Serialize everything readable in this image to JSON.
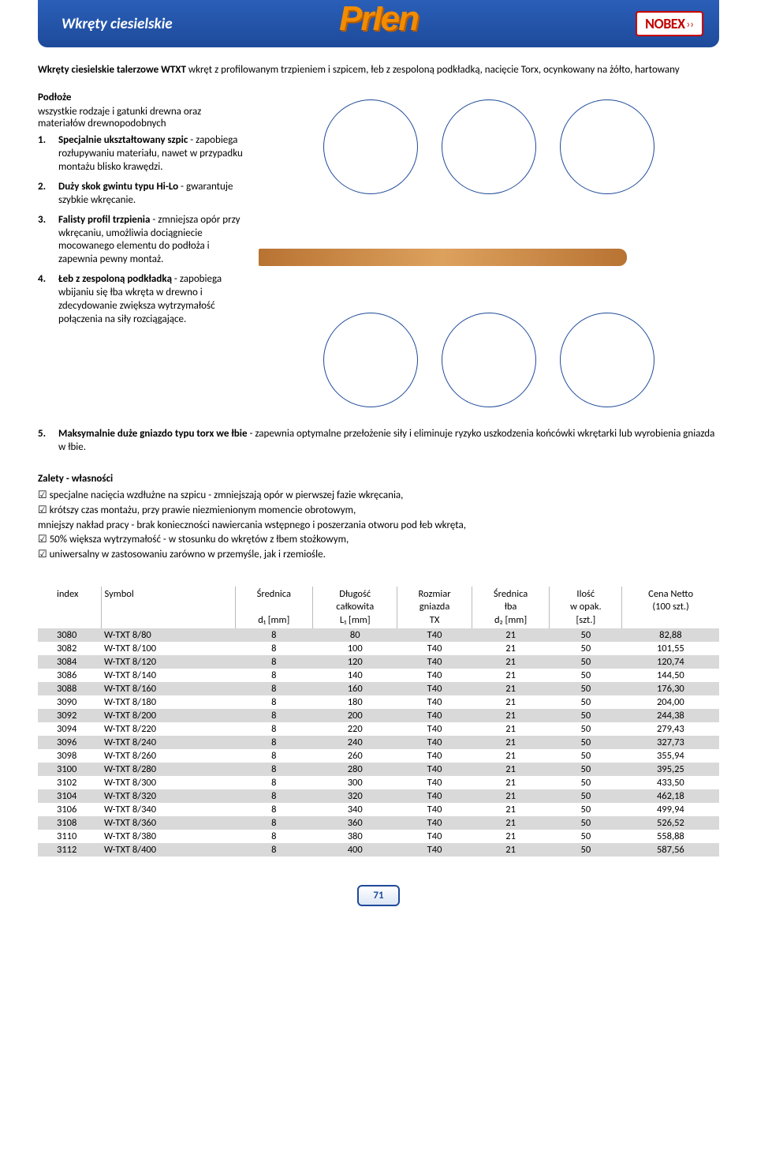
{
  "header": {
    "title": "Wkręty ciesielskie",
    "brand": "PrIen",
    "badge": "NOBEX",
    "badge_arrows": "››"
  },
  "intro": {
    "bold": "Wkręty ciesielskie talerzowe WTXT ",
    "rest": "wkręt z profilowanym trzpieniem i szpicem, łeb z zespoloną podkładką, nacięcie Torx, ocynkowany na żółto, hartowany"
  },
  "podloze": {
    "title": "Podłoże",
    "text": "wszystkie rodzaje i gatunki drewna oraz materiałów drewnopodobnych"
  },
  "features": [
    {
      "t": "Specjalnie ukształtowany szpic",
      "d": " - zapobiega rozłupywaniu materiału, nawet w przypadku montażu blisko krawędzi."
    },
    {
      "t": "Duży skok gwintu typu Hi-Lo",
      "d": " - gwarantuje szybkie wkręcanie."
    },
    {
      "t": "Falisty profil trzpienia",
      "d": " - zmniejsza opór przy wkręcaniu, umożliwia dociągniecie mocowanego elementu do podłoża i zapewnia pewny montaż."
    },
    {
      "t": "Łeb z zespoloną podkładką",
      "d": " - zapobiega wbijaniu się łba wkręta w drewno i zdecydowanie zwiększa wytrzymałość połączenia na siły rozciągające."
    },
    {
      "t": "Maksymalnie duże gniazdo typu torx we łbie",
      "d": " - zapewnia optymalne przełożenie siły i eliminuje ryzyko uszkodzenia końcówki wkrętarki lub wyrobienia gniazda w łbie."
    }
  ],
  "zalety": {
    "title": "Zalety - własności",
    "items": [
      "specjalne nacięcia wzdłużne na szpicu - zmniejszają opór w pierwszej fazie wkręcania,",
      "krótszy czas montażu, przy prawie niezmienionym momencie obrotowym,",
      "50% większa wytrzymałość - w stosunku do wkrętów z łbem stożkowym,",
      "uniwersalny w zastosowaniu zarówno w przemyśle, jak i rzemiośle."
    ],
    "plain": "mniejszy nakład pracy - brak konieczności nawiercania wstępnego i poszerzania otworu pod łeb wkręta,"
  },
  "table": {
    "headers": {
      "index": "index",
      "symbol": "Symbol",
      "d1_a": "Średnica",
      "d1_b": "d₁ [mm]",
      "l1_a": "Długość",
      "l1_b": "całkowita",
      "l1_c": "L₁ [mm]",
      "tx_a": "Rozmiar",
      "tx_b": "gniazda",
      "tx_c": "TX",
      "d2_a": "Średnica",
      "d2_b": "łba",
      "d2_c": "d₂ [mm]",
      "qty_a": "Ilość",
      "qty_b": "w opak.",
      "qty_c": "[szt.]",
      "price_a": "Cena Netto",
      "price_b": "(100 szt.)"
    },
    "rows": [
      {
        "idx": "3080",
        "sym": "W-TXT 8/80",
        "d1": "8",
        "l1": "80",
        "tx": "T40",
        "d2": "21",
        "qty": "50",
        "price": "82,88"
      },
      {
        "idx": "3082",
        "sym": "W-TXT 8/100",
        "d1": "8",
        "l1": "100",
        "tx": "T40",
        "d2": "21",
        "qty": "50",
        "price": "101,55"
      },
      {
        "idx": "3084",
        "sym": "W-TXT 8/120",
        "d1": "8",
        "l1": "120",
        "tx": "T40",
        "d2": "21",
        "qty": "50",
        "price": "120,74"
      },
      {
        "idx": "3086",
        "sym": "W-TXT 8/140",
        "d1": "8",
        "l1": "140",
        "tx": "T40",
        "d2": "21",
        "qty": "50",
        "price": "144,50"
      },
      {
        "idx": "3088",
        "sym": "W-TXT 8/160",
        "d1": "8",
        "l1": "160",
        "tx": "T40",
        "d2": "21",
        "qty": "50",
        "price": "176,30"
      },
      {
        "idx": "3090",
        "sym": "W-TXT 8/180",
        "d1": "8",
        "l1": "180",
        "tx": "T40",
        "d2": "21",
        "qty": "50",
        "price": "204,00"
      },
      {
        "idx": "3092",
        "sym": "W-TXT 8/200",
        "d1": "8",
        "l1": "200",
        "tx": "T40",
        "d2": "21",
        "qty": "50",
        "price": "244,38"
      },
      {
        "idx": "3094",
        "sym": "W-TXT 8/220",
        "d1": "8",
        "l1": "220",
        "tx": "T40",
        "d2": "21",
        "qty": "50",
        "price": "279,43"
      },
      {
        "idx": "3096",
        "sym": "W-TXT 8/240",
        "d1": "8",
        "l1": "240",
        "tx": "T40",
        "d2": "21",
        "qty": "50",
        "price": "327,73"
      },
      {
        "idx": "3098",
        "sym": "W-TXT 8/260",
        "d1": "8",
        "l1": "260",
        "tx": "T40",
        "d2": "21",
        "qty": "50",
        "price": "355,94"
      },
      {
        "idx": "3100",
        "sym": "W-TXT 8/280",
        "d1": "8",
        "l1": "280",
        "tx": "T40",
        "d2": "21",
        "qty": "50",
        "price": "395,25"
      },
      {
        "idx": "3102",
        "sym": "W-TXT 8/300",
        "d1": "8",
        "l1": "300",
        "tx": "T40",
        "d2": "21",
        "qty": "50",
        "price": "433,50"
      },
      {
        "idx": "3104",
        "sym": "W-TXT 8/320",
        "d1": "8",
        "l1": "320",
        "tx": "T40",
        "d2": "21",
        "qty": "50",
        "price": "462,18"
      },
      {
        "idx": "3106",
        "sym": "W-TXT 8/340",
        "d1": "8",
        "l1": "340",
        "tx": "T40",
        "d2": "21",
        "qty": "50",
        "price": "499,94"
      },
      {
        "idx": "3108",
        "sym": "W-TXT 8/360",
        "d1": "8",
        "l1": "360",
        "tx": "T40",
        "d2": "21",
        "qty": "50",
        "price": "526,52"
      },
      {
        "idx": "3110",
        "sym": "W-TXT 8/380",
        "d1": "8",
        "l1": "380",
        "tx": "T40",
        "d2": "21",
        "qty": "50",
        "price": "558,88"
      },
      {
        "idx": "3112",
        "sym": "W-TXT 8/400",
        "d1": "8",
        "l1": "400",
        "tx": "T40",
        "d2": "21",
        "qty": "50",
        "price": "587,56"
      }
    ]
  },
  "page_number": "71"
}
